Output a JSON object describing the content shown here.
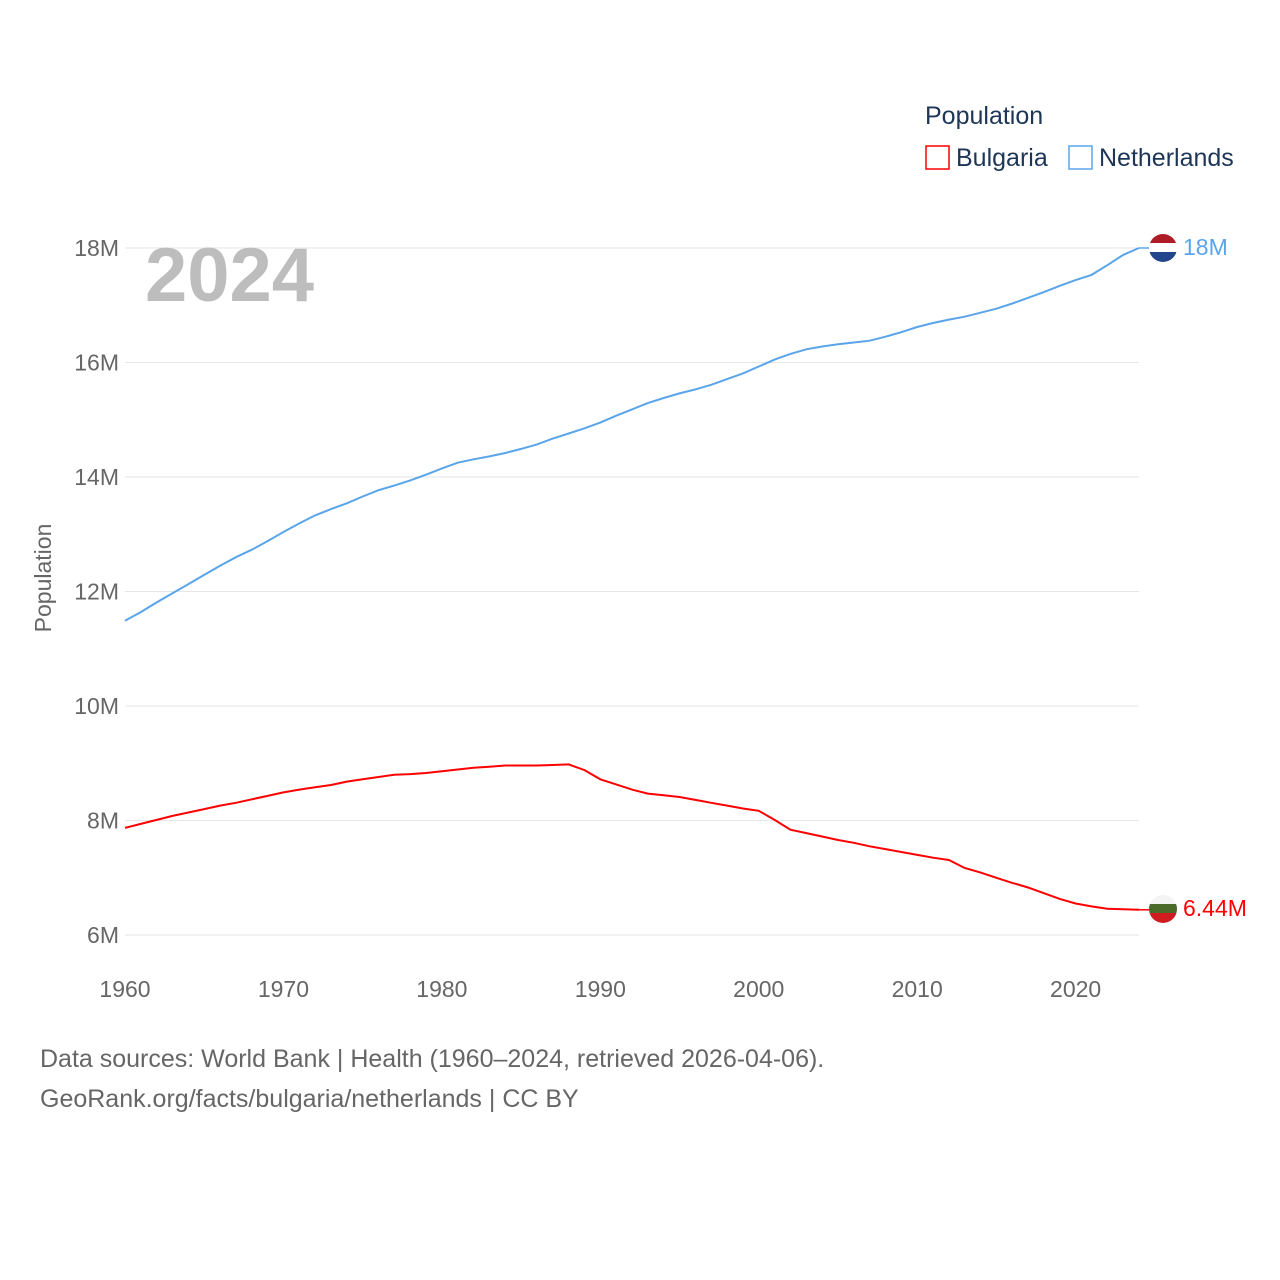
{
  "chart_data": {
    "type": "line",
    "year_label": "2024",
    "ylabel": "Population",
    "xlabel": "",
    "legend_title": "Population",
    "legend_position": "top-right",
    "xlim": [
      1960,
      2024
    ],
    "ylim": [
      6000000,
      18000000
    ],
    "x_ticks": [
      "1960",
      "1970",
      "1980",
      "1990",
      "2000",
      "2010",
      "2020"
    ],
    "y_ticks": [
      {
        "v": 6,
        "label": "6M"
      },
      {
        "v": 8,
        "label": "8M"
      },
      {
        "v": 10,
        "label": "10M"
      },
      {
        "v": 12,
        "label": "12M"
      },
      {
        "v": 14,
        "label": "14M"
      },
      {
        "v": 16,
        "label": "16M"
      },
      {
        "v": 18,
        "label": "18M"
      }
    ],
    "grid": true,
    "x": [
      1960,
      1961,
      1962,
      1963,
      1964,
      1965,
      1966,
      1967,
      1968,
      1969,
      1970,
      1971,
      1972,
      1973,
      1974,
      1975,
      1976,
      1977,
      1978,
      1979,
      1980,
      1981,
      1982,
      1983,
      1984,
      1985,
      1986,
      1987,
      1988,
      1989,
      1990,
      1991,
      1992,
      1993,
      1994,
      1995,
      1996,
      1997,
      1998,
      1999,
      2000,
      2001,
      2002,
      2003,
      2004,
      2005,
      2006,
      2007,
      2008,
      2009,
      2010,
      2011,
      2012,
      2013,
      2014,
      2015,
      2016,
      2017,
      2018,
      2019,
      2020,
      2021,
      2022,
      2023,
      2024
    ],
    "series": [
      {
        "name": "Bulgaria",
        "color": "#ff0000",
        "end_label": "6.44M",
        "values_millions": [
          7.87,
          7.94,
          8.01,
          8.08,
          8.14,
          8.2,
          8.26,
          8.31,
          8.37,
          8.43,
          8.49,
          8.54,
          8.58,
          8.62,
          8.68,
          8.72,
          8.76,
          8.8,
          8.81,
          8.83,
          8.86,
          8.89,
          8.92,
          8.94,
          8.96,
          8.96,
          8.96,
          8.97,
          8.98,
          8.88,
          8.72,
          8.63,
          8.54,
          8.47,
          8.44,
          8.41,
          8.36,
          8.31,
          8.26,
          8.21,
          8.17,
          8.01,
          7.84,
          7.78,
          7.72,
          7.66,
          7.61,
          7.55,
          7.5,
          7.45,
          7.4,
          7.35,
          7.31,
          7.17,
          7.09,
          7.0,
          6.91,
          6.83,
          6.73,
          6.63,
          6.55,
          6.5,
          6.46,
          6.45,
          6.44
        ]
      },
      {
        "name": "Netherlands",
        "color": "#5aa5ea",
        "end_label": "18M",
        "values_millions": [
          11.49,
          11.64,
          11.81,
          11.97,
          12.13,
          12.29,
          12.45,
          12.6,
          12.73,
          12.88,
          13.04,
          13.19,
          13.33,
          13.44,
          13.54,
          13.66,
          13.77,
          13.85,
          13.94,
          14.04,
          14.15,
          14.25,
          14.31,
          14.36,
          14.42,
          14.49,
          14.57,
          14.67,
          14.76,
          14.85,
          14.95,
          15.07,
          15.18,
          15.29,
          15.38,
          15.46,
          15.53,
          15.61,
          15.71,
          15.81,
          15.93,
          16.05,
          16.15,
          16.23,
          16.28,
          16.32,
          16.35,
          16.38,
          16.45,
          16.53,
          16.62,
          16.69,
          16.75,
          16.8,
          16.87,
          16.94,
          17.03,
          17.13,
          17.23,
          17.34,
          17.44,
          17.53,
          17.7,
          17.88,
          18.0
        ]
      }
    ]
  },
  "footer": {
    "line1": "Data sources: World Bank | Health (1960–2024, retrieved 2026-04-06).",
    "line2": "GeoRank.org/facts/bulgaria/netherlands | CC BY"
  }
}
